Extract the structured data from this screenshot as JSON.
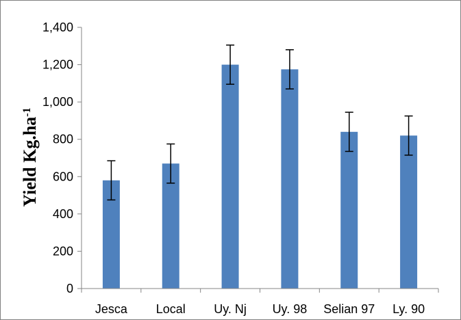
{
  "chart_data": {
    "type": "bar",
    "categories": [
      "Jesca",
      "Local",
      "Uy. Nj",
      "Uy. 98",
      "Selian 97",
      "Ly. 90"
    ],
    "values": [
      580,
      670,
      1200,
      1175,
      840,
      820
    ],
    "error": [
      105,
      105,
      105,
      105,
      105,
      105
    ],
    "ylabel_main": "Yield Kg.ha",
    "ylabel_sup": "-1",
    "xlabel": "",
    "ylim": [
      0,
      1400
    ],
    "yticks": [
      0,
      200,
      400,
      600,
      800,
      1000,
      1200,
      1400
    ],
    "ytick_labels": [
      "0",
      "200",
      "400",
      "600",
      "800",
      "1,000",
      "1,200",
      "1,400"
    ],
    "grid": false,
    "colors": {
      "bar": "#4f81bd",
      "axis": "#868686",
      "error": "#000000"
    }
  }
}
